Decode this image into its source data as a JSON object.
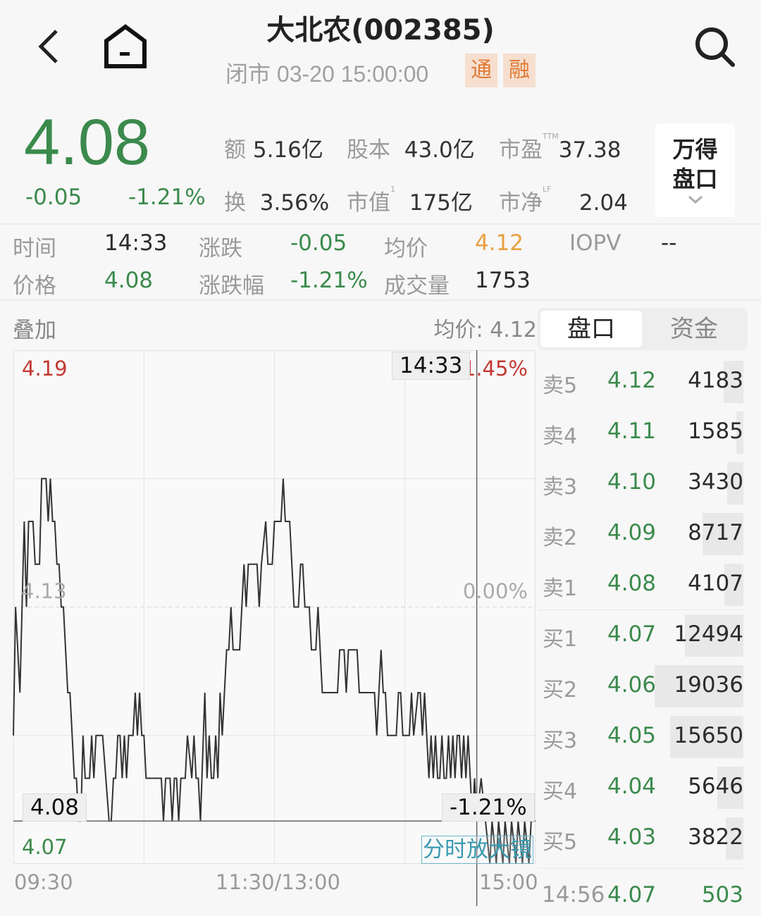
{
  "header": {
    "title": "大北农(002385)",
    "status": "闭市 03-20 15:00:00",
    "badges": [
      "通",
      "融"
    ],
    "icons": {
      "back": "chevron-left-icon",
      "home": "home-icon",
      "search": "search-icon"
    }
  },
  "quote": {
    "price": "4.08",
    "change": "-0.05",
    "change_pct": "-1.21%",
    "stats": {
      "amount_label": "额",
      "amount": "5.16亿",
      "share_label": "股本",
      "share": "43.0亿",
      "pe_label": "市盈",
      "pe_sup": "TTM",
      "pe": "37.38",
      "turnover_label": "换",
      "turnover": "3.56%",
      "mcap_label": "市值",
      "mcap_sup": "1",
      "mcap": "175亿",
      "pb_label": "市净",
      "pb_sup": "LF",
      "pb": "2.04"
    },
    "wind_button": {
      "line1": "万得",
      "line2": "盘口"
    }
  },
  "crosshair_info": {
    "time_label": "时间",
    "time": "14:33",
    "chg_label": "涨跌",
    "chg": "-0.05",
    "avg_label": "均价",
    "avg": "4.12",
    "iopv_label": "IOPV",
    "iopv": "--",
    "price_label": "价格",
    "price": "4.08",
    "chg_pct_label": "涨跌幅",
    "chg_pct": "-1.21%",
    "volume_label": "成交量",
    "volume": "1753"
  },
  "chart_toolbar": {
    "overlay": "叠加",
    "avg_price": "均价: 4.12"
  },
  "tabs": [
    {
      "label": "盘口",
      "active": true
    },
    {
      "label": "资金",
      "active": false
    }
  ],
  "colors": {
    "up": "#c23a32",
    "down": "#3b8a4c",
    "avg": "#e8a040",
    "magnifier": "#3a9ab0"
  },
  "chart_data": {
    "type": "line",
    "title": "",
    "xlabel": "",
    "ylabel": "",
    "ylim": [
      4.07,
      4.19
    ],
    "prev_close": 4.13,
    "y_tick_labels": {
      "top": "4.19",
      "mid": "4.13",
      "bottom": "4.07"
    },
    "pct_tick_labels": {
      "top": "1.45%",
      "mid": "0.00%"
    },
    "x_tick_labels": [
      "09:30",
      "11:30/13:00",
      "15:00"
    ],
    "grid": true,
    "crosshair": {
      "time": "14:33",
      "price_tag": "4.08",
      "pct_tag": "-1.21%"
    },
    "magnifier_label": "分时放大镜",
    "series": [
      {
        "points": [
          [
            "09:30",
            4.1
          ],
          [
            "09:31",
            4.13
          ],
          [
            "09:33",
            4.11
          ],
          [
            "09:34",
            4.13
          ],
          [
            "09:35",
            4.15
          ],
          [
            "09:36",
            4.13
          ],
          [
            "09:37",
            4.15
          ],
          [
            "09:39",
            4.15
          ],
          [
            "09:40",
            4.14
          ],
          [
            "09:42",
            4.14
          ],
          [
            "09:43",
            4.16
          ],
          [
            "09:45",
            4.16
          ],
          [
            "09:46",
            4.15
          ],
          [
            "09:47",
            4.16
          ],
          [
            "09:48",
            4.15
          ],
          [
            "09:49",
            4.15
          ],
          [
            "09:50",
            4.14
          ],
          [
            "09:51",
            4.14
          ],
          [
            "09:52",
            4.13
          ],
          [
            "09:53",
            4.13
          ],
          [
            "09:55",
            4.11
          ],
          [
            "09:56",
            4.11
          ],
          [
            "09:58",
            4.09
          ],
          [
            "09:59",
            4.09
          ],
          [
            "10:00",
            4.08
          ],
          [
            "10:01",
            4.08
          ],
          [
            "10:02",
            4.1
          ],
          [
            "10:03",
            4.09
          ],
          [
            "10:05",
            4.09
          ],
          [
            "10:06",
            4.1
          ],
          [
            "10:07",
            4.09
          ],
          [
            "10:08",
            4.1
          ],
          [
            "10:11",
            4.1
          ],
          [
            "10:14",
            4.08
          ],
          [
            "10:15",
            4.08
          ],
          [
            "10:16",
            4.09
          ],
          [
            "10:17",
            4.09
          ],
          [
            "10:18",
            4.1
          ],
          [
            "10:19",
            4.1
          ],
          [
            "10:20",
            4.09
          ],
          [
            "10:21",
            4.1
          ],
          [
            "10:22",
            4.09
          ],
          [
            "10:23",
            4.1
          ],
          [
            "10:25",
            4.1
          ],
          [
            "10:26",
            4.11
          ],
          [
            "10:27",
            4.1
          ],
          [
            "10:28",
            4.11
          ],
          [
            "10:29",
            4.1
          ],
          [
            "10:30",
            4.1
          ],
          [
            "10:31",
            4.09
          ],
          [
            "10:38",
            4.09
          ],
          [
            "10:39",
            4.08
          ],
          [
            "10:40",
            4.09
          ],
          [
            "10:42",
            4.09
          ],
          [
            "10:43",
            4.08
          ],
          [
            "10:44",
            4.09
          ],
          [
            "10:45",
            4.09
          ],
          [
            "10:46",
            4.08
          ],
          [
            "10:47",
            4.09
          ],
          [
            "10:49",
            4.09
          ],
          [
            "10:50",
            4.1
          ],
          [
            "10:52",
            4.09
          ],
          [
            "10:53",
            4.1
          ],
          [
            "10:54",
            4.09
          ],
          [
            "10:55",
            4.09
          ],
          [
            "10:56",
            4.08
          ],
          [
            "10:58",
            4.11
          ],
          [
            "10:59",
            4.09
          ],
          [
            "11:00",
            4.1
          ],
          [
            "11:01",
            4.09
          ],
          [
            "11:02",
            4.09
          ],
          [
            "11:03",
            4.1
          ],
          [
            "11:04",
            4.09
          ],
          [
            "11:05",
            4.11
          ],
          [
            "11:06",
            4.1
          ],
          [
            "11:08",
            4.12
          ],
          [
            "11:09",
            4.12
          ],
          [
            "11:10",
            4.13
          ],
          [
            "11:11",
            4.12
          ],
          [
            "11:14",
            4.12
          ],
          [
            "11:16",
            4.14
          ],
          [
            "11:17",
            4.13
          ],
          [
            "11:18",
            4.14
          ],
          [
            "11:22",
            4.14
          ],
          [
            "11:23",
            4.13
          ],
          [
            "11:24",
            4.14
          ],
          [
            "11:26",
            4.15
          ],
          [
            "11:27",
            4.14
          ],
          [
            "11:29",
            4.14
          ],
          [
            "13:00",
            4.15
          ],
          [
            "13:03",
            4.15
          ],
          [
            "13:04",
            4.16
          ],
          [
            "13:05",
            4.15
          ],
          [
            "13:07",
            4.15
          ],
          [
            "13:09",
            4.13
          ],
          [
            "13:11",
            4.13
          ],
          [
            "13:12",
            4.14
          ],
          [
            "13:13",
            4.14
          ],
          [
            "13:14",
            4.13
          ],
          [
            "13:16",
            4.13
          ],
          [
            "13:17",
            4.12
          ],
          [
            "13:19",
            4.12
          ],
          [
            "13:20",
            4.13
          ],
          [
            "13:22",
            4.11
          ],
          [
            "13:29",
            4.11
          ],
          [
            "13:30",
            4.12
          ],
          [
            "13:32",
            4.12
          ],
          [
            "13:33",
            4.11
          ],
          [
            "13:34",
            4.12
          ],
          [
            "13:38",
            4.12
          ],
          [
            "13:39",
            4.11
          ],
          [
            "13:46",
            4.11
          ],
          [
            "13:47",
            4.1
          ],
          [
            "13:49",
            4.12
          ],
          [
            "13:50",
            4.11
          ],
          [
            "13:51",
            4.11
          ],
          [
            "13:52",
            4.1
          ],
          [
            "13:56",
            4.1
          ],
          [
            "13:57",
            4.11
          ],
          [
            "13:58",
            4.11
          ],
          [
            "13:59",
            4.1
          ],
          [
            "14:02",
            4.1
          ],
          [
            "14:03",
            4.11
          ],
          [
            "14:04",
            4.1
          ],
          [
            "14:06",
            4.11
          ],
          [
            "14:07",
            4.11
          ],
          [
            "14:08",
            4.1
          ],
          [
            "14:09",
            4.11
          ],
          [
            "14:10",
            4.1
          ],
          [
            "14:11",
            4.09
          ],
          [
            "14:12",
            4.1
          ],
          [
            "14:13",
            4.09
          ],
          [
            "14:14",
            4.1
          ],
          [
            "14:15",
            4.09
          ],
          [
            "14:16",
            4.09
          ],
          [
            "14:17",
            4.1
          ],
          [
            "14:18",
            4.09
          ],
          [
            "14:19",
            4.09
          ],
          [
            "14:20",
            4.1
          ],
          [
            "14:21",
            4.09
          ],
          [
            "14:22",
            4.1
          ],
          [
            "14:23",
            4.09
          ],
          [
            "14:24",
            4.1
          ],
          [
            "14:25",
            4.1
          ],
          [
            "14:26",
            4.09
          ],
          [
            "14:27",
            4.1
          ],
          [
            "14:28",
            4.09
          ],
          [
            "14:29",
            4.1
          ],
          [
            "14:31",
            4.08
          ],
          [
            "14:32",
            4.09
          ],
          [
            "14:33",
            4.08
          ],
          [
            "14:35",
            4.09
          ],
          [
            "14:37",
            4.08
          ],
          [
            "14:39",
            4.07
          ],
          [
            "14:40",
            4.08
          ],
          [
            "14:42",
            4.07
          ],
          [
            "14:43",
            4.08
          ],
          [
            "14:45",
            4.07
          ],
          [
            "14:46",
            4.08
          ],
          [
            "14:48",
            4.07
          ],
          [
            "14:49",
            4.08
          ],
          [
            "14:51",
            4.07
          ],
          [
            "14:52",
            4.08
          ],
          [
            "14:54",
            4.07
          ],
          [
            "14:55",
            4.08
          ],
          [
            "14:57",
            4.07
          ],
          [
            "14:58",
            4.08
          ],
          [
            "15:00",
            4.08
          ]
        ]
      }
    ]
  },
  "order_book": {
    "rows": [
      {
        "label": "卖5",
        "price": "4.12",
        "volume": 4183
      },
      {
        "label": "卖4",
        "price": "4.11",
        "volume": 1585
      },
      {
        "label": "卖3",
        "price": "4.10",
        "volume": 3430
      },
      {
        "label": "卖2",
        "price": "4.09",
        "volume": 8717
      },
      {
        "label": "卖1",
        "price": "4.08",
        "volume": 4107
      },
      {
        "label": "买1",
        "price": "4.07",
        "volume": 12494
      },
      {
        "label": "买2",
        "price": "4.06",
        "volume": 19036
      },
      {
        "label": "买3",
        "price": "4.05",
        "volume": 15650
      },
      {
        "label": "买4",
        "price": "4.04",
        "volume": 5646
      },
      {
        "label": "买5",
        "price": "4.03",
        "volume": 3822
      }
    ],
    "last_trade": {
      "time": "14:56",
      "price": "4.07",
      "volume": "503"
    }
  }
}
